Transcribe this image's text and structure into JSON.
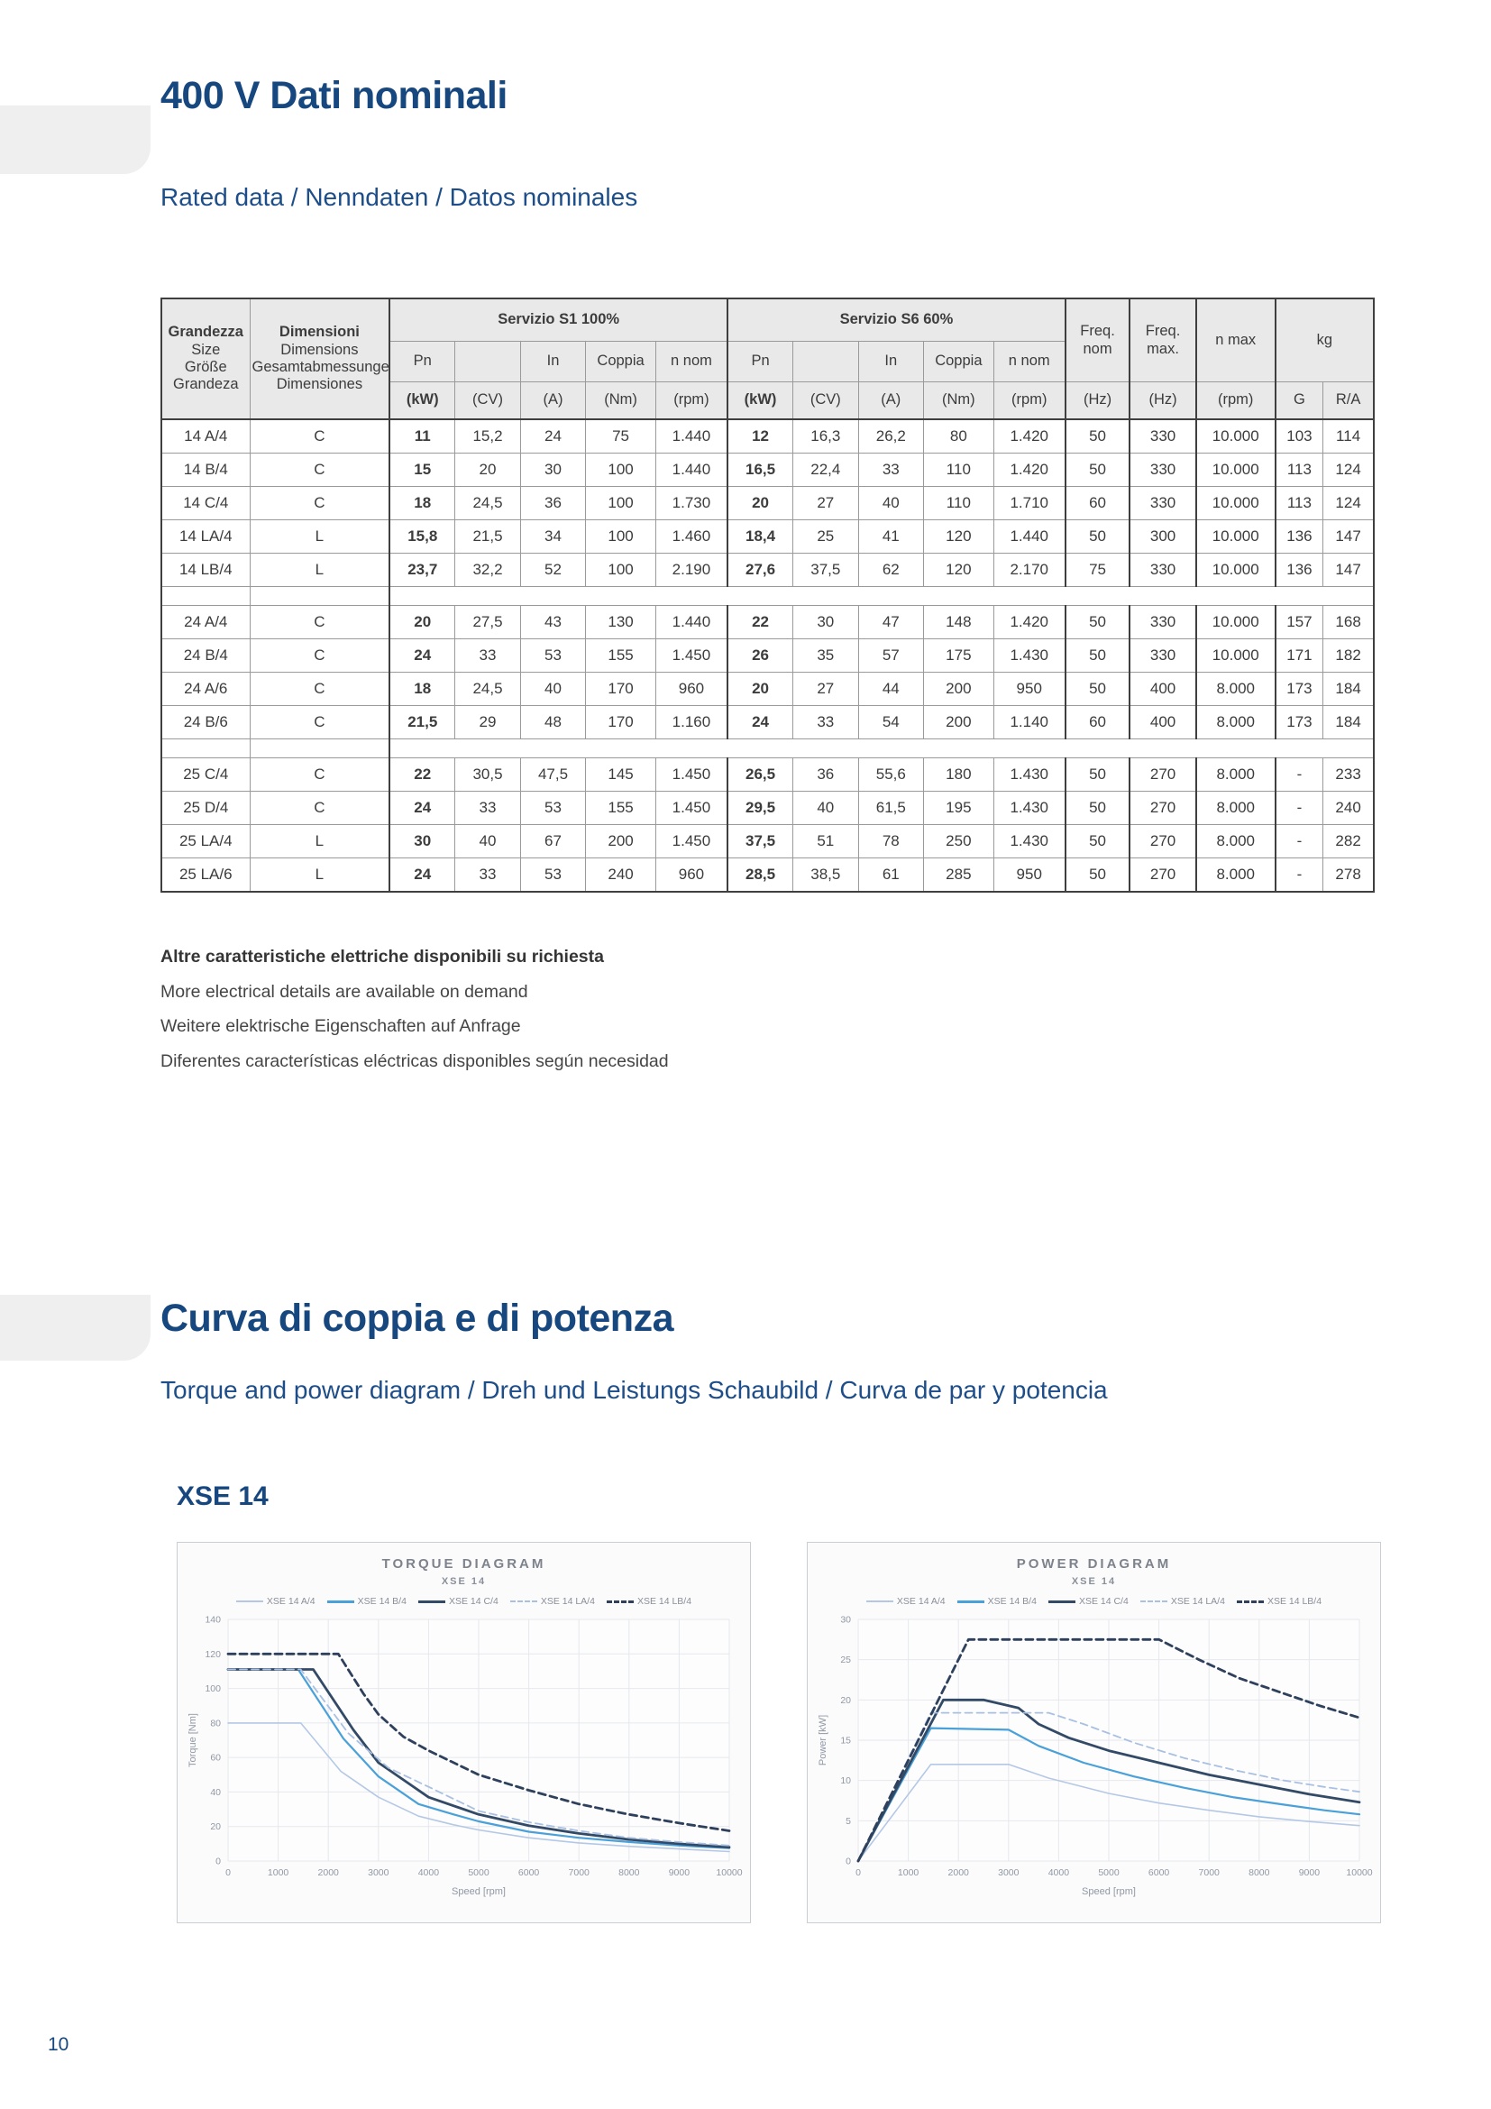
{
  "page_number": "10",
  "accent_color": "#17477f",
  "section_rated": {
    "title": "400 V Dati nominali",
    "subtitle": "Rated data / Nenndaten / Datos nominales"
  },
  "table": {
    "header": {
      "size_col": [
        "Grandezza",
        "Size",
        "Größe",
        "Grandeza"
      ],
      "dim_col": [
        "Dimensioni",
        "Dimensions",
        "Gesamtabmessungen",
        "Dimensiones"
      ],
      "s1_label": "Servizio S1 100%",
      "s6_label": "Servizio S6 60%",
      "duty_names": [
        "Pn",
        "",
        "In",
        "Coppia",
        "n nom"
      ],
      "duty_units": [
        "(kW)",
        "(CV)",
        "(A)",
        "(Nm)",
        "(rpm)"
      ],
      "freq_nom": [
        "Freq.",
        "nom"
      ],
      "freq_nom_unit": "(Hz)",
      "freq_max": [
        "Freq.",
        "max."
      ],
      "freq_max_unit": "(Hz)",
      "n_max": "n max",
      "n_max_unit": "(rpm)",
      "kg": "kg",
      "kg_sub": [
        "G",
        "R/A"
      ]
    },
    "groups": [
      {
        "rows": [
          {
            "size": "14 A/4",
            "dim": "C",
            "s1": [
              "11",
              "15,2",
              "24",
              "75",
              "1.440"
            ],
            "s6": [
              "12",
              "16,3",
              "26,2",
              "80",
              "1.420"
            ],
            "fn": "50",
            "fm": "330",
            "nmax": "10.000",
            "g": "103",
            "ra": "114"
          },
          {
            "size": "14 B/4",
            "dim": "C",
            "s1": [
              "15",
              "20",
              "30",
              "100",
              "1.440"
            ],
            "s6": [
              "16,5",
              "22,4",
              "33",
              "110",
              "1.420"
            ],
            "fn": "50",
            "fm": "330",
            "nmax": "10.000",
            "g": "113",
            "ra": "124"
          },
          {
            "size": "14 C/4",
            "dim": "C",
            "s1": [
              "18",
              "24,5",
              "36",
              "100",
              "1.730"
            ],
            "s6": [
              "20",
              "27",
              "40",
              "110",
              "1.710"
            ],
            "fn": "60",
            "fm": "330",
            "nmax": "10.000",
            "g": "113",
            "ra": "124"
          },
          {
            "size": "14 LA/4",
            "dim": "L",
            "s1": [
              "15,8",
              "21,5",
              "34",
              "100",
              "1.460"
            ],
            "s6": [
              "18,4",
              "25",
              "41",
              "120",
              "1.440"
            ],
            "fn": "50",
            "fm": "300",
            "nmax": "10.000",
            "g": "136",
            "ra": "147"
          },
          {
            "size": "14 LB/4",
            "dim": "L",
            "s1": [
              "23,7",
              "32,2",
              "52",
              "100",
              "2.190"
            ],
            "s6": [
              "27,6",
              "37,5",
              "62",
              "120",
              "2.170"
            ],
            "fn": "75",
            "fm": "330",
            "nmax": "10.000",
            "g": "136",
            "ra": "147"
          }
        ]
      },
      {
        "rows": [
          {
            "size": "24 A/4",
            "dim": "C",
            "s1": [
              "20",
              "27,5",
              "43",
              "130",
              "1.440"
            ],
            "s6": [
              "22",
              "30",
              "47",
              "148",
              "1.420"
            ],
            "fn": "50",
            "fm": "330",
            "nmax": "10.000",
            "g": "157",
            "ra": "168"
          },
          {
            "size": "24 B/4",
            "dim": "C",
            "s1": [
              "24",
              "33",
              "53",
              "155",
              "1.450"
            ],
            "s6": [
              "26",
              "35",
              "57",
              "175",
              "1.430"
            ],
            "fn": "50",
            "fm": "330",
            "nmax": "10.000",
            "g": "171",
            "ra": "182"
          },
          {
            "size": "24 A/6",
            "dim": "C",
            "s1": [
              "18",
              "24,5",
              "40",
              "170",
              "960"
            ],
            "s6": [
              "20",
              "27",
              "44",
              "200",
              "950"
            ],
            "fn": "50",
            "fm": "400",
            "nmax": "8.000",
            "g": "173",
            "ra": "184"
          },
          {
            "size": "24 B/6",
            "dim": "C",
            "s1": [
              "21,5",
              "29",
              "48",
              "170",
              "1.160"
            ],
            "s6": [
              "24",
              "33",
              "54",
              "200",
              "1.140"
            ],
            "fn": "60",
            "fm": "400",
            "nmax": "8.000",
            "g": "173",
            "ra": "184"
          }
        ]
      },
      {
        "rows": [
          {
            "size": "25 C/4",
            "dim": "C",
            "s1": [
              "22",
              "30,5",
              "47,5",
              "145",
              "1.450"
            ],
            "s6": [
              "26,5",
              "36",
              "55,6",
              "180",
              "1.430"
            ],
            "fn": "50",
            "fm": "270",
            "nmax": "8.000",
            "g": "-",
            "ra": "233"
          },
          {
            "size": "25 D/4",
            "dim": "C",
            "s1": [
              "24",
              "33",
              "53",
              "155",
              "1.450"
            ],
            "s6": [
              "29,5",
              "40",
              "61,5",
              "195",
              "1.430"
            ],
            "fn": "50",
            "fm": "270",
            "nmax": "8.000",
            "g": "-",
            "ra": "240"
          },
          {
            "size": "25 LA/4",
            "dim": "L",
            "s1": [
              "30",
              "40",
              "67",
              "200",
              "1.450"
            ],
            "s6": [
              "37,5",
              "51",
              "78",
              "250",
              "1.430"
            ],
            "fn": "50",
            "fm": "270",
            "nmax": "8.000",
            "g": "-",
            "ra": "282"
          },
          {
            "size": "25 LA/6",
            "dim": "L",
            "s1": [
              "24",
              "33",
              "53",
              "240",
              "960"
            ],
            "s6": [
              "28,5",
              "38,5",
              "61",
              "285",
              "950"
            ],
            "fn": "50",
            "fm": "270",
            "nmax": "8.000",
            "g": "-",
            "ra": "278"
          }
        ]
      }
    ]
  },
  "footnotes": [
    "Altre caratteristiche elettriche disponibili su richiesta",
    "More electrical details are available on demand",
    "Weitere elektrische Eigenschaften auf Anfrage",
    "Diferentes características eléctricas disponibles según necesidad"
  ],
  "section_curves": {
    "title": "Curva di coppia e di potenza",
    "subtitle": "Torque and power diagram / Dreh und Leistungs Schaubild / Curva de par y potencia",
    "model": "XSE 14"
  },
  "chart_data": [
    {
      "type": "line",
      "title": "TORQUE DIAGRAM",
      "subtitle": "XSE 14",
      "xlabel": "Speed [rpm]",
      "ylabel": "Torque [Nm]",
      "xlim": [
        0,
        10000
      ],
      "ylim": [
        0,
        140
      ],
      "xticks": [
        0,
        1000,
        2000,
        3000,
        4000,
        5000,
        6000,
        7000,
        8000,
        9000,
        10000
      ],
      "yticks": [
        0,
        20,
        40,
        60,
        80,
        100,
        120,
        140
      ],
      "grid": true,
      "legend_position": "top",
      "series": [
        {
          "name": "XSE 14 A/4",
          "color": "#b4c8e6",
          "dash": false,
          "width": 1.6,
          "points": [
            [
              0,
              80
            ],
            [
              1450,
              80
            ],
            [
              2250,
              52
            ],
            [
              3000,
              37
            ],
            [
              3800,
              26
            ],
            [
              4500,
              21
            ],
            [
              5000,
              18
            ],
            [
              6000,
              13.5
            ],
            [
              7000,
              10.5
            ],
            [
              8000,
              8.5
            ],
            [
              9000,
              7
            ],
            [
              10000,
              5.5
            ]
          ]
        },
        {
          "name": "XSE 14 B/4",
          "color": "#4aa0d8",
          "dash": false,
          "width": 2.2,
          "points": [
            [
              0,
              111
            ],
            [
              1400,
              111
            ],
            [
              2300,
              71
            ],
            [
              3000,
              49
            ],
            [
              3800,
              33
            ],
            [
              4500,
              27
            ],
            [
              5000,
              23
            ],
            [
              6000,
              17
            ],
            [
              7000,
              13.5
            ],
            [
              8000,
              11
            ],
            [
              9000,
              9
            ],
            [
              10000,
              7.5
            ]
          ]
        },
        {
          "name": "XSE 14 C/4",
          "color": "#324a66",
          "dash": false,
          "width": 2.8,
          "points": [
            [
              0,
              111
            ],
            [
              1700,
              111
            ],
            [
              2500,
              76
            ],
            [
              3000,
              57
            ],
            [
              3500,
              47
            ],
            [
              4000,
              37
            ],
            [
              5000,
              27
            ],
            [
              6000,
              20.5
            ],
            [
              7000,
              16
            ],
            [
              8000,
              12.5
            ],
            [
              9000,
              10
            ],
            [
              10000,
              8
            ]
          ]
        },
        {
          "name": "XSE 14 LA/4",
          "color": "#a9c0e2",
          "dash": true,
          "width": 1.8,
          "points": [
            [
              0,
              111
            ],
            [
              1450,
              111
            ],
            [
              2400,
              74
            ],
            [
              3200,
              54
            ],
            [
              4000,
              43
            ],
            [
              5000,
              29
            ],
            [
              6000,
              22.5
            ],
            [
              7000,
              17.5
            ],
            [
              8000,
              13.5
            ],
            [
              9000,
              11
            ],
            [
              10000,
              9
            ]
          ]
        },
        {
          "name": "XSE 14 LB/4",
          "color": "#2e405c",
          "dash": true,
          "width": 2.8,
          "points": [
            [
              0,
              120
            ],
            [
              2200,
              120
            ],
            [
              2700,
              97
            ],
            [
              3000,
              85
            ],
            [
              3500,
              72
            ],
            [
              4000,
              64
            ],
            [
              5000,
              50
            ],
            [
              6000,
              41
            ],
            [
              7000,
              33
            ],
            [
              8000,
              27
            ],
            [
              9000,
              22
            ],
            [
              10000,
              17.5
            ]
          ]
        }
      ]
    },
    {
      "type": "line",
      "title": "POWER DIAGRAM",
      "subtitle": "XSE 14",
      "xlabel": "Speed [rpm]",
      "ylabel": "Power [kW]",
      "xlim": [
        0,
        10000
      ],
      "ylim": [
        0,
        30
      ],
      "xticks": [
        0,
        1000,
        2000,
        3000,
        4000,
        5000,
        6000,
        7000,
        8000,
        9000,
        10000
      ],
      "yticks": [
        0,
        5,
        10,
        15,
        20,
        25,
        30
      ],
      "grid": true,
      "legend_position": "top",
      "series": [
        {
          "name": "XSE 14 A/4",
          "color": "#b4c8e6",
          "dash": false,
          "width": 1.6,
          "points": [
            [
              0,
              0
            ],
            [
              1450,
              12
            ],
            [
              3000,
              12
            ],
            [
              3800,
              10.3
            ],
            [
              5000,
              8.4
            ],
            [
              6000,
              7.2
            ],
            [
              7000,
              6.3
            ],
            [
              8000,
              5.5
            ],
            [
              9000,
              4.9
            ],
            [
              10000,
              4.4
            ]
          ]
        },
        {
          "name": "XSE 14 B/4",
          "color": "#4aa0d8",
          "dash": false,
          "width": 2.2,
          "points": [
            [
              0,
              0
            ],
            [
              1450,
              16.5
            ],
            [
              3000,
              16.3
            ],
            [
              3600,
              14.3
            ],
            [
              4500,
              12.2
            ],
            [
              5500,
              10.5
            ],
            [
              6500,
              9.1
            ],
            [
              7500,
              7.9
            ],
            [
              8500,
              7
            ],
            [
              9300,
              6.3
            ],
            [
              10000,
              5.8
            ]
          ]
        },
        {
          "name": "XSE 14 C/4",
          "color": "#324a66",
          "dash": false,
          "width": 2.8,
          "points": [
            [
              0,
              0
            ],
            [
              1700,
              20
            ],
            [
              2500,
              20
            ],
            [
              3200,
              19
            ],
            [
              3600,
              17
            ],
            [
              4200,
              15.3
            ],
            [
              5000,
              13.7
            ],
            [
              6000,
              12.2
            ],
            [
              7000,
              10.7
            ],
            [
              8000,
              9.5
            ],
            [
              9000,
              8.3
            ],
            [
              10000,
              7.3
            ]
          ]
        },
        {
          "name": "XSE 14 LA/4",
          "color": "#a9c0e2",
          "dash": true,
          "width": 1.8,
          "points": [
            [
              0,
              0
            ],
            [
              1450,
              18.4
            ],
            [
              3800,
              18.4
            ],
            [
              4500,
              17
            ],
            [
              5500,
              14.7
            ],
            [
              6500,
              12.8
            ],
            [
              7500,
              11.3
            ],
            [
              8500,
              10
            ],
            [
              9300,
              9.2
            ],
            [
              10000,
              8.6
            ]
          ]
        },
        {
          "name": "XSE 14 LB/4",
          "color": "#2e405c",
          "dash": true,
          "width": 2.8,
          "points": [
            [
              0,
              0
            ],
            [
              2200,
              27.5
            ],
            [
              6000,
              27.5
            ],
            [
              6800,
              25
            ],
            [
              7600,
              22.7
            ],
            [
              8400,
              21
            ],
            [
              9200,
              19.3
            ],
            [
              10000,
              17.8
            ]
          ]
        }
      ]
    }
  ]
}
